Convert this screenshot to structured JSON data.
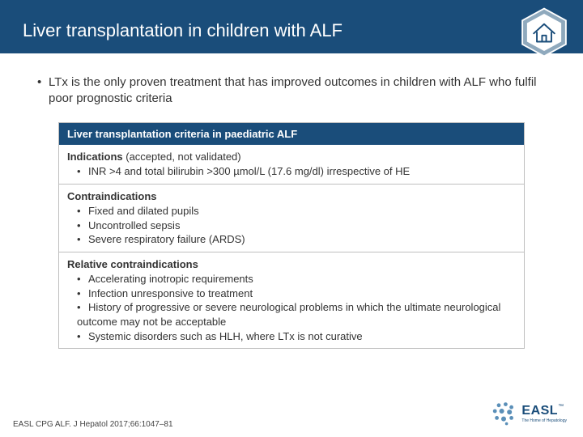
{
  "colors": {
    "brand": "#1a4d7a",
    "border": "#bfbfbf",
    "bg": "#ffffff",
    "text": "#333333"
  },
  "header": {
    "title": "Liver transplantation in children with ALF"
  },
  "lead": {
    "bullet": "•",
    "text": "LTx is the only proven treatment that has improved outcomes in children with ALF who fulfil poor prognostic criteria"
  },
  "table": {
    "header": "Liver transplantation criteria in paediatric ALF",
    "sections": [
      {
        "label_bold": "Indications",
        "label_rest": " (accepted, not validated)",
        "items": [
          "INR >4 and total bilirubin >300 µmol/L (17.6 mg/dl) irrespective of HE"
        ]
      },
      {
        "label_bold": "Contraindications",
        "label_rest": "",
        "items": [
          "Fixed and dilated pupils",
          "Uncontrolled sepsis",
          "Severe respiratory failure (ARDS)"
        ]
      },
      {
        "label_bold": "Relative contraindications",
        "label_rest": "",
        "items": [
          "Accelerating inotropic requirements",
          "Infection unresponsive to treatment",
          "History of progressive or severe neurological problems in which the ultimate neurological outcome may not be acceptable",
          "Systemic disorders such as HLH, where LTx is not curative"
        ]
      }
    ]
  },
  "footer": {
    "ref": "EASL CPG ALF. J Hepatol 2017;66:1047–81"
  },
  "logo": {
    "main": "EASL",
    "sub": "The Home of Hepatology",
    "tm": "™"
  }
}
